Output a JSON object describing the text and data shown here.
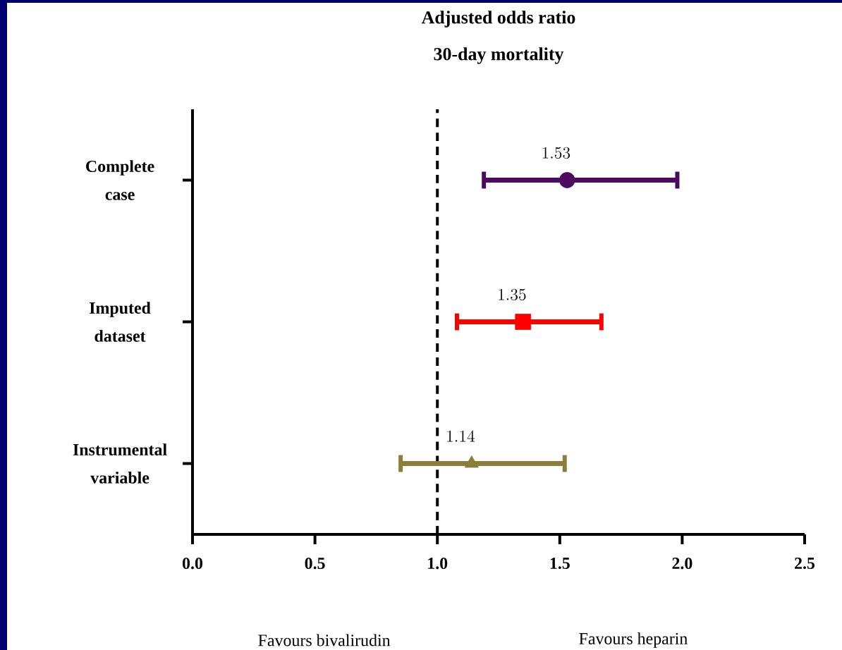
{
  "chart_data": {
    "type": "scatter",
    "orientation": "horizontal",
    "title": "Adjusted odds ratio",
    "subtitle": "30-day mortality",
    "categories": [
      "Complete case",
      "Imputed dataset",
      "Instrumental variable"
    ],
    "series": [
      {
        "color": "#4b0a5e",
        "marker": "circle",
        "values": [
          1.53,
          null,
          null
        ],
        "errors": [
          [
            1.19,
            1.98
          ],
          null,
          null
        ]
      },
      {
        "color": "#ff0000",
        "marker": "square",
        "values": [
          null,
          1.35,
          null
        ],
        "errors": [
          null,
          [
            1.08,
            1.67
          ],
          null
        ]
      },
      {
        "color": "#8b7d3a",
        "marker": "triangle",
        "values": [
          null,
          null,
          1.14
        ],
        "errors": [
          null,
          null,
          [
            0.85,
            1.52
          ]
        ]
      }
    ],
    "xlim": [
      0,
      2.5
    ],
    "xticks": [
      {
        "value": 0,
        "label": "0.0"
      },
      {
        "value": 0.5,
        "label": "0.5"
      },
      {
        "value": 1,
        "label": "1.0"
      },
      {
        "value": 1.5,
        "label": "1.5"
      },
      {
        "value": 2,
        "label": "2.0"
      },
      {
        "value": 2.5,
        "label": "2.5"
      }
    ],
    "ref_lines": [
      {
        "axis": "x",
        "value": 1,
        "color": "#000000",
        "line_style": "dashed"
      }
    ],
    "data_labels": true,
    "annotations": [
      "Favours bivalirudin",
      "Favours heparin"
    ]
  }
}
